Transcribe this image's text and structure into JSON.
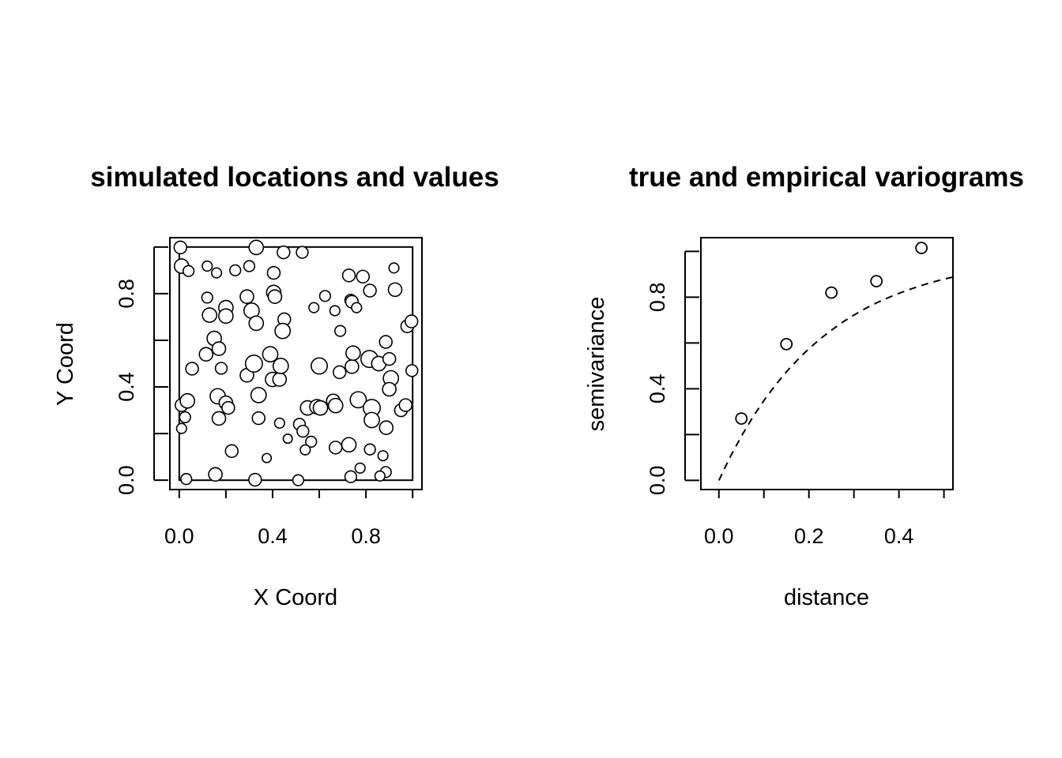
{
  "chart_data": [
    {
      "type": "scatter",
      "title": "simulated locations and values",
      "xlabel": "X Coord",
      "ylabel": "Y Coord",
      "xlim": [
        -0.04,
        1.04
      ],
      "ylim": [
        -0.04,
        1.04
      ],
      "xticks": [
        "0.0",
        "0.4",
        "0.8"
      ],
      "yticks": [
        "0.0",
        "0.4",
        "0.8"
      ],
      "inner_rect": [
        0,
        0,
        1,
        1
      ],
      "grid": false,
      "marker": "open circle, size proportional to value",
      "points": [
        {
          "x": 0.005,
          "y": 0.998,
          "v": 0.45
        },
        {
          "x": 0.01,
          "y": 0.918,
          "v": 0.55
        },
        {
          "x": 0.04,
          "y": 0.897,
          "v": 0.35
        },
        {
          "x": 0.33,
          "y": 0.998,
          "v": 0.55
        },
        {
          "x": 0.447,
          "y": 0.977,
          "v": 0.45
        },
        {
          "x": 0.527,
          "y": 0.977,
          "v": 0.4
        },
        {
          "x": 0.12,
          "y": 0.918,
          "v": 0.3
        },
        {
          "x": 0.16,
          "y": 0.889,
          "v": 0.3
        },
        {
          "x": 0.24,
          "y": 0.9,
          "v": 0.35
        },
        {
          "x": 0.3,
          "y": 0.918,
          "v": 0.35
        },
        {
          "x": 0.405,
          "y": 0.889,
          "v": 0.45
        },
        {
          "x": 0.12,
          "y": 0.783,
          "v": 0.35
        },
        {
          "x": 0.2,
          "y": 0.74,
          "v": 0.55
        },
        {
          "x": 0.29,
          "y": 0.787,
          "v": 0.5
        },
        {
          "x": 0.31,
          "y": 0.727,
          "v": 0.6
        },
        {
          "x": 0.13,
          "y": 0.708,
          "v": 0.55
        },
        {
          "x": 0.2,
          "y": 0.704,
          "v": 0.55
        },
        {
          "x": 0.33,
          "y": 0.673,
          "v": 0.55
        },
        {
          "x": 0.405,
          "y": 0.805,
          "v": 0.55
        },
        {
          "x": 0.41,
          "y": 0.787,
          "v": 0.5
        },
        {
          "x": 0.45,
          "y": 0.69,
          "v": 0.45
        },
        {
          "x": 0.443,
          "y": 0.64,
          "v": 0.6
        },
        {
          "x": 0.577,
          "y": 0.74,
          "v": 0.3
        },
        {
          "x": 0.625,
          "y": 0.79,
          "v": 0.35
        },
        {
          "x": 0.667,
          "y": 0.727,
          "v": 0.3
        },
        {
          "x": 0.69,
          "y": 0.64,
          "v": 0.35
        },
        {
          "x": 0.727,
          "y": 0.878,
          "v": 0.45
        },
        {
          "x": 0.735,
          "y": 0.772,
          "v": 0.4
        },
        {
          "x": 0.74,
          "y": 0.765,
          "v": 0.45
        },
        {
          "x": 0.76,
          "y": 0.74,
          "v": 0.3
        },
        {
          "x": 0.787,
          "y": 0.873,
          "v": 0.45
        },
        {
          "x": 0.817,
          "y": 0.813,
          "v": 0.45
        },
        {
          "x": 0.92,
          "y": 0.91,
          "v": 0.3
        },
        {
          "x": 0.925,
          "y": 0.817,
          "v": 0.5
        },
        {
          "x": 0.977,
          "y": 0.66,
          "v": 0.45
        },
        {
          "x": 0.995,
          "y": 0.681,
          "v": 0.45
        },
        {
          "x": 0.15,
          "y": 0.608,
          "v": 0.55
        },
        {
          "x": 0.17,
          "y": 0.564,
          "v": 0.5
        },
        {
          "x": 0.115,
          "y": 0.54,
          "v": 0.5
        },
        {
          "x": 0.055,
          "y": 0.478,
          "v": 0.45
        },
        {
          "x": 0.18,
          "y": 0.48,
          "v": 0.4
        },
        {
          "x": 0.29,
          "y": 0.45,
          "v": 0.5
        },
        {
          "x": 0.32,
          "y": 0.5,
          "v": 0.7
        },
        {
          "x": 0.39,
          "y": 0.54,
          "v": 0.6
        },
        {
          "x": 0.4,
          "y": 0.432,
          "v": 0.55
        },
        {
          "x": 0.43,
          "y": 0.432,
          "v": 0.5
        },
        {
          "x": 0.435,
          "y": 0.49,
          "v": 0.6
        },
        {
          "x": 0.6,
          "y": 0.49,
          "v": 0.65
        },
        {
          "x": 0.687,
          "y": 0.463,
          "v": 0.45
        },
        {
          "x": 0.74,
          "y": 0.487,
          "v": 0.5
        },
        {
          "x": 0.745,
          "y": 0.545,
          "v": 0.55
        },
        {
          "x": 0.815,
          "y": 0.52,
          "v": 0.7
        },
        {
          "x": 0.855,
          "y": 0.5,
          "v": 0.55
        },
        {
          "x": 0.885,
          "y": 0.593,
          "v": 0.45
        },
        {
          "x": 0.9,
          "y": 0.52,
          "v": 0.45
        },
        {
          "x": 0.907,
          "y": 0.437,
          "v": 0.6
        },
        {
          "x": 0.9,
          "y": 0.39,
          "v": 0.5
        },
        {
          "x": 0.997,
          "y": 0.47,
          "v": 0.4
        },
        {
          "x": 0.01,
          "y": 0.322,
          "v": 0.45
        },
        {
          "x": 0.035,
          "y": 0.34,
          "v": 0.55
        },
        {
          "x": 0.025,
          "y": 0.27,
          "v": 0.35
        },
        {
          "x": 0.01,
          "y": 0.222,
          "v": 0.3
        },
        {
          "x": 0.165,
          "y": 0.36,
          "v": 0.6
        },
        {
          "x": 0.2,
          "y": 0.332,
          "v": 0.5
        },
        {
          "x": 0.21,
          "y": 0.31,
          "v": 0.45
        },
        {
          "x": 0.17,
          "y": 0.265,
          "v": 0.5
        },
        {
          "x": 0.34,
          "y": 0.365,
          "v": 0.6
        },
        {
          "x": 0.34,
          "y": 0.266,
          "v": 0.45
        },
        {
          "x": 0.43,
          "y": 0.245,
          "v": 0.3
        },
        {
          "x": 0.55,
          "y": 0.31,
          "v": 0.55
        },
        {
          "x": 0.59,
          "y": 0.315,
          "v": 0.55
        },
        {
          "x": 0.605,
          "y": 0.31,
          "v": 0.55
        },
        {
          "x": 0.66,
          "y": 0.34,
          "v": 0.5
        },
        {
          "x": 0.67,
          "y": 0.32,
          "v": 0.55
        },
        {
          "x": 0.767,
          "y": 0.345,
          "v": 0.65
        },
        {
          "x": 0.825,
          "y": 0.31,
          "v": 0.7
        },
        {
          "x": 0.825,
          "y": 0.258,
          "v": 0.6
        },
        {
          "x": 0.887,
          "y": 0.225,
          "v": 0.5
        },
        {
          "x": 0.95,
          "y": 0.3,
          "v": 0.45
        },
        {
          "x": 0.97,
          "y": 0.322,
          "v": 0.45
        },
        {
          "x": 0.515,
          "y": 0.24,
          "v": 0.4
        },
        {
          "x": 0.53,
          "y": 0.21,
          "v": 0.4
        },
        {
          "x": 0.565,
          "y": 0.165,
          "v": 0.35
        },
        {
          "x": 0.465,
          "y": 0.178,
          "v": 0.25
        },
        {
          "x": 0.54,
          "y": 0.13,
          "v": 0.3
        },
        {
          "x": 0.225,
          "y": 0.125,
          "v": 0.45
        },
        {
          "x": 0.375,
          "y": 0.095,
          "v": 0.25
        },
        {
          "x": 0.67,
          "y": 0.14,
          "v": 0.45
        },
        {
          "x": 0.727,
          "y": 0.152,
          "v": 0.55
        },
        {
          "x": 0.817,
          "y": 0.132,
          "v": 0.35
        },
        {
          "x": 0.873,
          "y": 0.105,
          "v": 0.3
        },
        {
          "x": 0.775,
          "y": 0.052,
          "v": 0.3
        },
        {
          "x": 0.885,
          "y": 0.035,
          "v": 0.35
        },
        {
          "x": 0.86,
          "y": 0.018,
          "v": 0.3
        },
        {
          "x": 0.03,
          "y": 0.005,
          "v": 0.35
        },
        {
          "x": 0.155,
          "y": 0.025,
          "v": 0.5
        },
        {
          "x": 0.325,
          "y": 0.002,
          "v": 0.45
        },
        {
          "x": 0.51,
          "y": 0.0,
          "v": 0.35
        },
        {
          "x": 0.735,
          "y": 0.015,
          "v": 0.4
        }
      ]
    },
    {
      "type": "scatter",
      "title": "true and empirical variograms",
      "xlabel": "distance",
      "ylabel": "semivariance",
      "xlim": [
        -0.04,
        0.52
      ],
      "ylim": [
        -0.04,
        1.06
      ],
      "xticks": [
        "0.0",
        "0.2",
        "0.4"
      ],
      "yticks": [
        "0.0",
        "0.4",
        "0.8"
      ],
      "grid": false,
      "series": [
        {
          "values": [
            {
              "x": 0.05,
              "y": 0.27
            },
            {
              "x": 0.15,
              "y": 0.595
            },
            {
              "x": 0.25,
              "y": 0.82
            },
            {
              "x": 0.35,
              "y": 0.87
            },
            {
              "x": 0.45,
              "y": 1.015
            }
          ]
        }
      ],
      "curve": {
        "style": "dashed",
        "points": [
          {
            "x": 0.0,
            "y": 0.0
          },
          {
            "x": 0.025,
            "y": 0.102
          },
          {
            "x": 0.05,
            "y": 0.193
          },
          {
            "x": 0.075,
            "y": 0.275
          },
          {
            "x": 0.1,
            "y": 0.349
          },
          {
            "x": 0.125,
            "y": 0.415
          },
          {
            "x": 0.15,
            "y": 0.474
          },
          {
            "x": 0.175,
            "y": 0.527
          },
          {
            "x": 0.2,
            "y": 0.575
          },
          {
            "x": 0.225,
            "y": 0.618
          },
          {
            "x": 0.25,
            "y": 0.656
          },
          {
            "x": 0.275,
            "y": 0.691
          },
          {
            "x": 0.3,
            "y": 0.722
          },
          {
            "x": 0.325,
            "y": 0.75
          },
          {
            "x": 0.35,
            "y": 0.775
          },
          {
            "x": 0.375,
            "y": 0.797
          },
          {
            "x": 0.4,
            "y": 0.817
          },
          {
            "x": 0.425,
            "y": 0.835
          },
          {
            "x": 0.45,
            "y": 0.851
          },
          {
            "x": 0.475,
            "y": 0.866
          },
          {
            "x": 0.5,
            "y": 0.879
          },
          {
            "x": 0.52,
            "y": 0.888
          }
        ]
      }
    }
  ]
}
